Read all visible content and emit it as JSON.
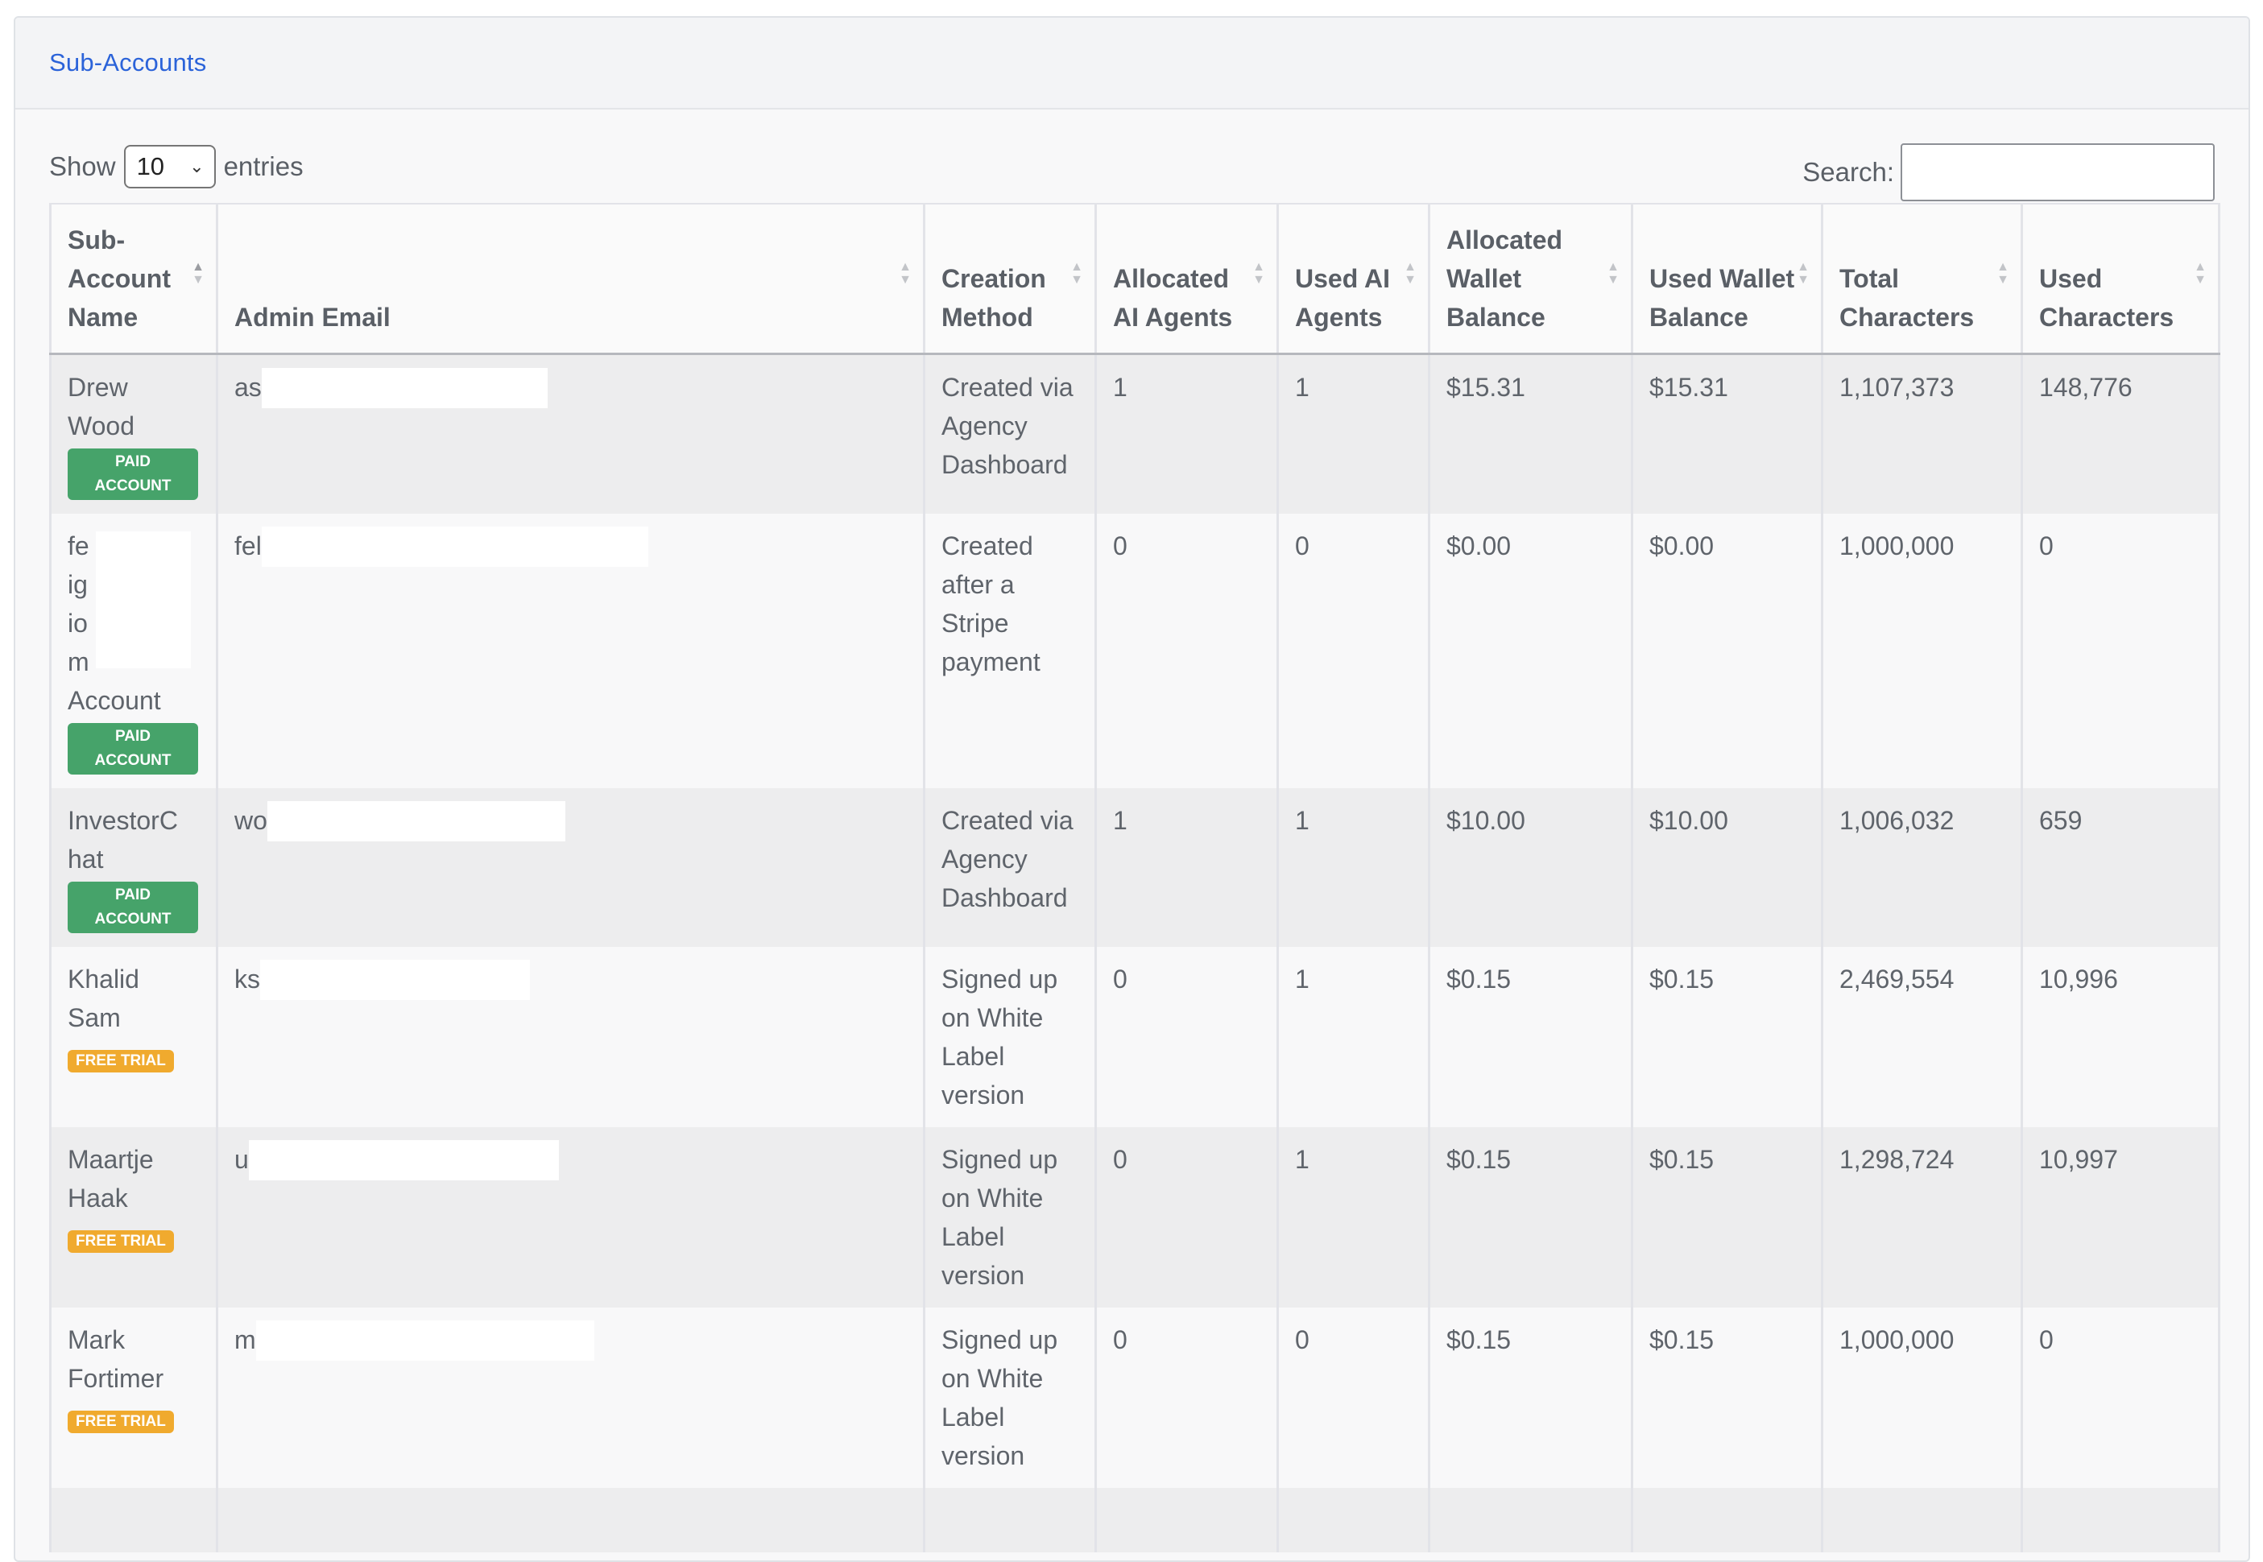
{
  "card": {
    "title": "Sub-Accounts"
  },
  "length_control": {
    "show_label": "Show",
    "value": "10",
    "entries_label": "entries"
  },
  "search": {
    "label": "Search:",
    "value": ""
  },
  "columns": [
    "Sub-Account Name",
    "Admin Email",
    "Creation Method",
    "Allocated AI Agents",
    "Used AI Agents",
    "Allocated Wallet Balance",
    "Used Wallet Balance",
    "Total Characters",
    "Used Characters"
  ],
  "rows": [
    {
      "name_lines": [
        "Drew",
        "Wood"
      ],
      "badge": "PAID ACCOUNT",
      "badge_type": "paid",
      "email_visible": "as",
      "method": "Created via Agency Dashboard",
      "allocated_agents": "1",
      "used_agents": "1",
      "allocated_wallet": "$15.31",
      "used_wallet": "$15.31",
      "total_chars": "1,107,373",
      "used_chars": "148,776"
    },
    {
      "name_lines": [
        "fe",
        "ig",
        "io",
        "m",
        "Account"
      ],
      "badge": "PAID ACCOUNT",
      "badge_type": "paid",
      "email_visible": "fel",
      "method": "Created after a Stripe payment",
      "allocated_agents": "0",
      "used_agents": "0",
      "allocated_wallet": "$0.00",
      "used_wallet": "$0.00",
      "total_chars": "1,000,000",
      "used_chars": "0"
    },
    {
      "name_lines": [
        "InvestorC",
        "hat"
      ],
      "badge": "PAID ACCOUNT",
      "badge_type": "paid",
      "email_visible": "wo",
      "method": "Created via Agency Dashboard",
      "allocated_agents": "1",
      "used_agents": "1",
      "allocated_wallet": "$10.00",
      "used_wallet": "$10.00",
      "total_chars": "1,006,032",
      "used_chars": "659"
    },
    {
      "name_lines": [
        "Khalid",
        "Sam"
      ],
      "badge": "FREE TRIAL",
      "badge_type": "trial",
      "email_visible": "ks",
      "method": "Signed up on White Label version",
      "allocated_agents": "0",
      "used_agents": "1",
      "allocated_wallet": "$0.15",
      "used_wallet": "$0.15",
      "total_chars": "2,469,554",
      "used_chars": "10,996"
    },
    {
      "name_lines": [
        "Maartje",
        "Haak"
      ],
      "badge": "FREE TRIAL",
      "badge_type": "trial",
      "email_visible": "u",
      "method": "Signed up on White Label version",
      "allocated_agents": "0",
      "used_agents": "1",
      "allocated_wallet": "$0.15",
      "used_wallet": "$0.15",
      "total_chars": "1,298,724",
      "used_chars": "10,997"
    },
    {
      "name_lines": [
        "Mark",
        "Fortimer"
      ],
      "badge": "FREE TRIAL",
      "badge_type": "trial",
      "email_visible": "m",
      "method": "Signed up on White Label version",
      "allocated_agents": "0",
      "used_agents": "0",
      "allocated_wallet": "$0.15",
      "used_wallet": "$0.15",
      "total_chars": "1,000,000",
      "used_chars": "0"
    }
  ],
  "icons": {
    "sort": "sort-both-icon",
    "sort_asc": "sort-ascending-icon",
    "select_chevron": "chevron-down-icon"
  }
}
